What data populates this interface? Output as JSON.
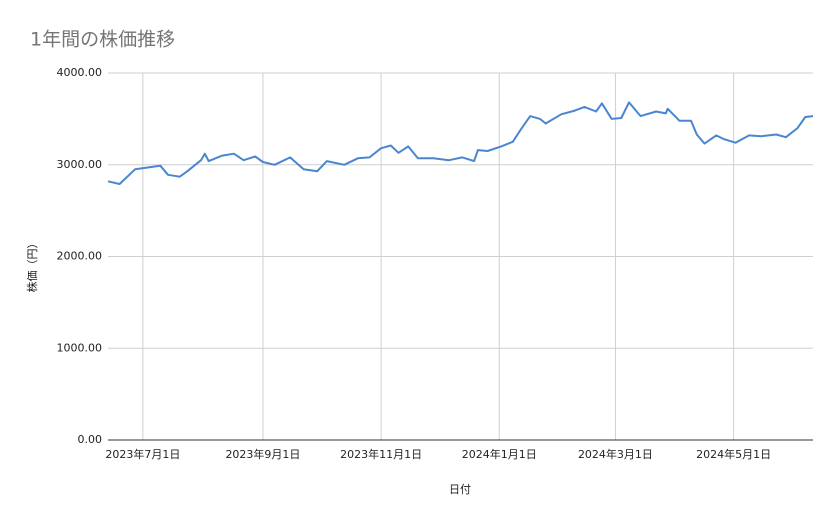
{
  "chart_data": {
    "type": "line",
    "title": "1年間の株価推移",
    "x_label": "日付",
    "y_label": "株価（円）",
    "x": [
      "2023-06-13",
      "2023-06-19",
      "2023-06-27",
      "2023-07-10",
      "2023-07-14",
      "2023-07-20",
      "2023-07-24",
      "2023-07-31",
      "2023-08-02",
      "2023-08-04",
      "2023-08-11",
      "2023-08-17",
      "2023-08-22",
      "2023-08-28",
      "2023-09-01",
      "2023-09-07",
      "2023-09-15",
      "2023-09-22",
      "2023-09-29",
      "2023-10-04",
      "2023-10-13",
      "2023-10-20",
      "2023-10-26",
      "2023-11-01",
      "2023-11-06",
      "2023-11-10",
      "2023-11-15",
      "2023-11-20",
      "2023-11-28",
      "2023-12-06",
      "2023-12-13",
      "2023-12-19",
      "2023-12-21",
      "2023-12-26",
      "2024-01-02",
      "2024-01-08",
      "2024-01-12",
      "2024-01-17",
      "2024-01-22",
      "2024-01-25",
      "2024-02-02",
      "2024-02-09",
      "2024-02-14",
      "2024-02-20",
      "2024-02-23",
      "2024-02-28",
      "2024-03-04",
      "2024-03-08",
      "2024-03-14",
      "2024-03-22",
      "2024-03-27",
      "2024-03-28",
      "2024-04-03",
      "2024-04-09",
      "2024-04-12",
      "2024-04-16",
      "2024-04-22",
      "2024-04-26",
      "2024-05-02",
      "2024-05-09",
      "2024-05-15",
      "2024-05-23",
      "2024-05-28",
      "2024-06-03",
      "2024-06-07",
      "2024-06-11"
    ],
    "values": [
      2820,
      2790,
      2950,
      2990,
      2890,
      2870,
      2930,
      3050,
      3120,
      3040,
      3100,
      3120,
      3050,
      3090,
      3030,
      3000,
      3080,
      2950,
      2930,
      3040,
      3000,
      3070,
      3080,
      3180,
      3210,
      3130,
      3200,
      3070,
      3070,
      3050,
      3080,
      3040,
      3160,
      3150,
      3200,
      3250,
      3380,
      3530,
      3500,
      3450,
      3550,
      3590,
      3630,
      3580,
      3670,
      3500,
      3510,
      3680,
      3530,
      3580,
      3560,
      3610,
      3480,
      3480,
      3330,
      3230,
      3320,
      3280,
      3240,
      3320,
      3310,
      3330,
      3300,
      3400,
      3520,
      3530
    ],
    "color": "#4a86d0",
    "xlim": [
      "2023-06-13",
      "2024-06-11"
    ],
    "xticks": [
      {
        "value": "2023-07-01",
        "label": "2023年7月1日"
      },
      {
        "value": "2023-09-01",
        "label": "2023年9月1日"
      },
      {
        "value": "2023-11-01",
        "label": "2023年11月1日"
      },
      {
        "value": "2024-01-01",
        "label": "2024年1月1日"
      },
      {
        "value": "2024-03-01",
        "label": "2024年3月1日"
      },
      {
        "value": "2024-05-01",
        "label": "2024年5月1日"
      }
    ],
    "ylim": [
      0,
      4000
    ],
    "yticks": [
      {
        "value": 0,
        "label": "0.00"
      },
      {
        "value": 1000,
        "label": "1000.00"
      },
      {
        "value": 2000,
        "label": "2000.00"
      },
      {
        "value": 3000,
        "label": "3000.00"
      },
      {
        "value": 4000,
        "label": "4000.00"
      }
    ],
    "grid": true
  }
}
